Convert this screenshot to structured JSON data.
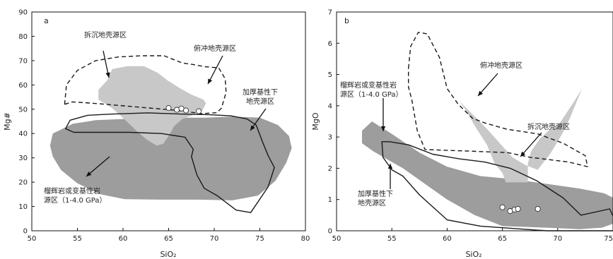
{
  "chart_data": [
    {
      "type": "area",
      "panel_label": "a",
      "xlabel": "SiO₂",
      "ylabel": "Mg#",
      "xlim": [
        50,
        80
      ],
      "ylim": [
        0,
        90
      ],
      "xticks": [
        "50",
        "55",
        "60",
        "65",
        "70",
        "75",
        "80"
      ],
      "yticks": [
        "0",
        "10",
        "20",
        "30",
        "40",
        "50",
        "60",
        "70",
        "80",
        "90"
      ],
      "fields": [
        {
          "label": "拆沉地壳源区",
          "fill": "light-gray",
          "polygon": [
            [
              58.3,
              62
            ],
            [
              58.8,
              66.5
            ],
            [
              60.5,
              67.7
            ],
            [
              62.3,
              67.7
            ],
            [
              63.8,
              65
            ],
            [
              64.9,
              61.8
            ],
            [
              66.3,
              58.5
            ],
            [
              67.5,
              56
            ],
            [
              68.8,
              54
            ],
            [
              69.1,
              52.5
            ],
            [
              68.7,
              49.5
            ],
            [
              67.6,
              47.5
            ],
            [
              66.5,
              46
            ],
            [
              65.6,
              43
            ],
            [
              65.1,
              39.5
            ],
            [
              64.4,
              35.8
            ],
            [
              63.7,
              35
            ],
            [
              62.6,
              37.5
            ],
            [
              61.5,
              41
            ],
            [
              60.4,
              45
            ],
            [
              58.8,
              50.5
            ],
            [
              57.3,
              54
            ],
            [
              57.3,
              58
            ]
          ]
        },
        {
          "label": "榴辉岩或变基性岩源区（1-4.0 GPa）",
          "fill": "dark-gray",
          "polygon": [
            [
              52.3,
              40
            ],
            [
              54.5,
              44
            ],
            [
              57,
              45.5
            ],
            [
              60,
              46
            ],
            [
              63,
              46.5
            ],
            [
              66,
              46.5
            ],
            [
              69,
              46.5
            ],
            [
              72,
              47
            ],
            [
              75,
              46.5
            ],
            [
              77,
              43.5
            ],
            [
              78.2,
              39
            ],
            [
              78.5,
              34
            ],
            [
              77.9,
              28
            ],
            [
              76.7,
              20.5
            ],
            [
              74.8,
              14.5
            ],
            [
              72,
              12.5
            ],
            [
              68.3,
              12.8
            ],
            [
              64.2,
              12.8
            ],
            [
              60.2,
              13
            ],
            [
              57.5,
              15
            ],
            [
              55,
              19.5
            ],
            [
              53.2,
              25
            ],
            [
              52.3,
              30.5
            ],
            [
              52,
              35
            ]
          ]
        },
        {
          "label": "俯冲地壳源区",
          "outline": "dashed",
          "polygon": [
            [
              53.6,
              52
            ],
            [
              53.8,
              60
            ],
            [
              55,
              66
            ],
            [
              57,
              70
            ],
            [
              59.5,
              71.5
            ],
            [
              62,
              72
            ],
            [
              64.5,
              72
            ],
            [
              66.5,
              69
            ],
            [
              67.5,
              68.5
            ],
            [
              69,
              67.5
            ],
            [
              70.5,
              67
            ],
            [
              71.2,
              62.5
            ],
            [
              71.3,
              57
            ],
            [
              70.8,
              50.5
            ],
            [
              70.3,
              48.6
            ],
            [
              68.6,
              48.2
            ],
            [
              66,
              49.5
            ],
            [
              61.3,
              51
            ],
            [
              56.6,
              52.5
            ],
            [
              54.4,
              53
            ]
          ]
        },
        {
          "label": "加厚基性下地壳源区",
          "outline": "solid",
          "polygon": [
            [
              56.1,
              47.5
            ],
            [
              54.2,
              45.5
            ],
            [
              53.7,
              42
            ],
            [
              54.6,
              40.5
            ],
            [
              57.8,
              40.5
            ],
            [
              60.7,
              40.5
            ],
            [
              64.2,
              40
            ],
            [
              66.8,
              38.5
            ],
            [
              67.7,
              33.5
            ],
            [
              67.5,
              30.5
            ],
            [
              68.1,
              23
            ],
            [
              68.9,
              17.5
            ],
            [
              70.3,
              14.5
            ],
            [
              72.4,
              8.5
            ],
            [
              74,
              7.5
            ],
            [
              75.9,
              18
            ],
            [
              76.6,
              26
            ],
            [
              75.9,
              31
            ],
            [
              75.3,
              36.5
            ],
            [
              74.6,
              43.5
            ],
            [
              73.6,
              46
            ],
            [
              71.8,
              47.3
            ],
            [
              69.3,
              47.8
            ],
            [
              66.5,
              48
            ],
            [
              62.7,
              48.5
            ],
            [
              58.7,
              48
            ]
          ]
        }
      ],
      "points": [
        [
          65,
          50.5
        ],
        [
          65.9,
          49.8
        ],
        [
          66.4,
          50.3
        ],
        [
          66.9,
          49.5
        ],
        [
          68.3,
          49.2
        ]
      ],
      "annotations": [
        {
          "text": "拆沉地壳源区"
        },
        {
          "text": "俯冲地壳源区"
        },
        {
          "text": "加厚基性下"
        },
        {
          "text": "地壳源区"
        },
        {
          "text": "榴辉岩或变基性岩"
        },
        {
          "text": "源区（1-4.0 GPa）"
        }
      ]
    },
    {
      "type": "area",
      "panel_label": "b",
      "xlabel": "SiO₂",
      "ylabel": "MgO",
      "xlim": [
        50,
        75
      ],
      "ylim": [
        0,
        7
      ],
      "xticks": [
        "50",
        "55",
        "60",
        "65",
        "70",
        "75"
      ],
      "yticks": [
        "0",
        "1",
        "2",
        "3",
        "4",
        "5",
        "6",
        "7"
      ],
      "fields": [
        {
          "label": "榴辉岩或变基性岩源区（1-4.0 GPa）",
          "fill": "dark-gray",
          "polygon": [
            [
              52.3,
              3.2
            ],
            [
              53.2,
              3.5
            ],
            [
              55,
              3.1
            ],
            [
              57.5,
              2.5
            ],
            [
              60,
              2.05
            ],
            [
              63,
              1.75
            ],
            [
              66,
              1.65
            ],
            [
              68,
              1.55
            ],
            [
              70,
              1.45
            ],
            [
              72,
              1.35
            ],
            [
              74.2,
              1.2
            ],
            [
              75.6,
              0.95
            ],
            [
              75.6,
              0.3
            ],
            [
              74,
              0.1
            ],
            [
              72,
              0.05
            ],
            [
              69,
              0.1
            ],
            [
              65,
              0.15
            ],
            [
              62.5,
              0.5
            ],
            [
              60,
              1.0
            ],
            [
              58,
              1.5
            ],
            [
              56,
              2.0
            ],
            [
              54.5,
              2.3
            ],
            [
              53.3,
              2.55
            ],
            [
              52.3,
              2.8
            ]
          ]
        },
        {
          "label": "拆沉地壳源区",
          "fill": "light-gray",
          "polygon": [
            [
              61.1,
              4.15
            ],
            [
              63.5,
              3.3
            ],
            [
              65.9,
              2.35
            ],
            [
              67.1,
              2.1
            ],
            [
              68.2,
              1.95
            ],
            [
              69.3,
              2.45
            ],
            [
              70.4,
              3.1
            ],
            [
              71.1,
              3.6
            ],
            [
              72.2,
              4.55
            ],
            [
              71.6,
              4.2
            ],
            [
              70.2,
              3.45
            ],
            [
              69.3,
              3.25
            ],
            [
              68.4,
              2.95
            ],
            [
              67.6,
              2.55
            ],
            [
              67.3,
              2.15
            ],
            [
              67.3,
              1.55
            ],
            [
              65.3,
              1.55
            ],
            [
              65,
              1.85
            ],
            [
              64.3,
              2.15
            ],
            [
              63.6,
              2.75
            ],
            [
              62.6,
              3.3
            ],
            [
              61.7,
              3.85
            ]
          ]
        },
        {
          "label": "俯冲地壳源区",
          "outline": "dashed",
          "polygon": [
            [
              56.5,
              5.2
            ],
            [
              56.7,
              5.9
            ],
            [
              57.4,
              6.35
            ],
            [
              58.2,
              6.3
            ],
            [
              59.3,
              5.55
            ],
            [
              60,
              4.55
            ],
            [
              61,
              4.05
            ],
            [
              62.3,
              3.6
            ],
            [
              63.4,
              3.45
            ],
            [
              65.4,
              3.25
            ],
            [
              68.2,
              3.1
            ],
            [
              70.5,
              2.8
            ],
            [
              72.5,
              2.4
            ],
            [
              72.7,
              2.05
            ],
            [
              71,
              2.2
            ],
            [
              67.5,
              2.35
            ],
            [
              65.5,
              2.5
            ],
            [
              62,
              2.55
            ],
            [
              58,
              2.6
            ],
            [
              57.3,
              3.2
            ],
            [
              57,
              3.8
            ],
            [
              56.8,
              4.2
            ],
            [
              56.5,
              4.6
            ]
          ]
        },
        {
          "label": "加厚基性下地壳源区",
          "outline": "solid",
          "polygon": [
            [
              54.1,
              2.85
            ],
            [
              54.8,
              2.85
            ],
            [
              56.5,
              2.75
            ],
            [
              58.7,
              2.45
            ],
            [
              61.1,
              2.3
            ],
            [
              63.4,
              2.2
            ],
            [
              65.7,
              2.0
            ],
            [
              68.1,
              1.6
            ],
            [
              70.5,
              1.05
            ],
            [
              72.1,
              0.5
            ],
            [
              74.7,
              0.7
            ],
            [
              75.5,
              0.1
            ],
            [
              75.5,
              0
            ],
            [
              72.5,
              0
            ],
            [
              69,
              0
            ],
            [
              63,
              0.15
            ],
            [
              60,
              0.35
            ],
            [
              57.5,
              1.15
            ],
            [
              56,
              1.75
            ],
            [
              55,
              1.95
            ],
            [
              54.2,
              2.35
            ]
          ]
        }
      ],
      "points": [
        [
          65,
          0.75
        ],
        [
          65.7,
          0.63
        ],
        [
          66.1,
          0.68
        ],
        [
          66.4,
          0.7
        ],
        [
          68.2,
          0.7
        ]
      ],
      "annotations": [
        {
          "text": "榴辉岩或变基性岩"
        },
        {
          "text": "源区（1-4.0 GPa）"
        },
        {
          "text": "俯冲地壳源区"
        },
        {
          "text": "拆沉地壳源区"
        },
        {
          "text": "加厚基性下"
        },
        {
          "text": "地壳源区"
        }
      ]
    }
  ]
}
